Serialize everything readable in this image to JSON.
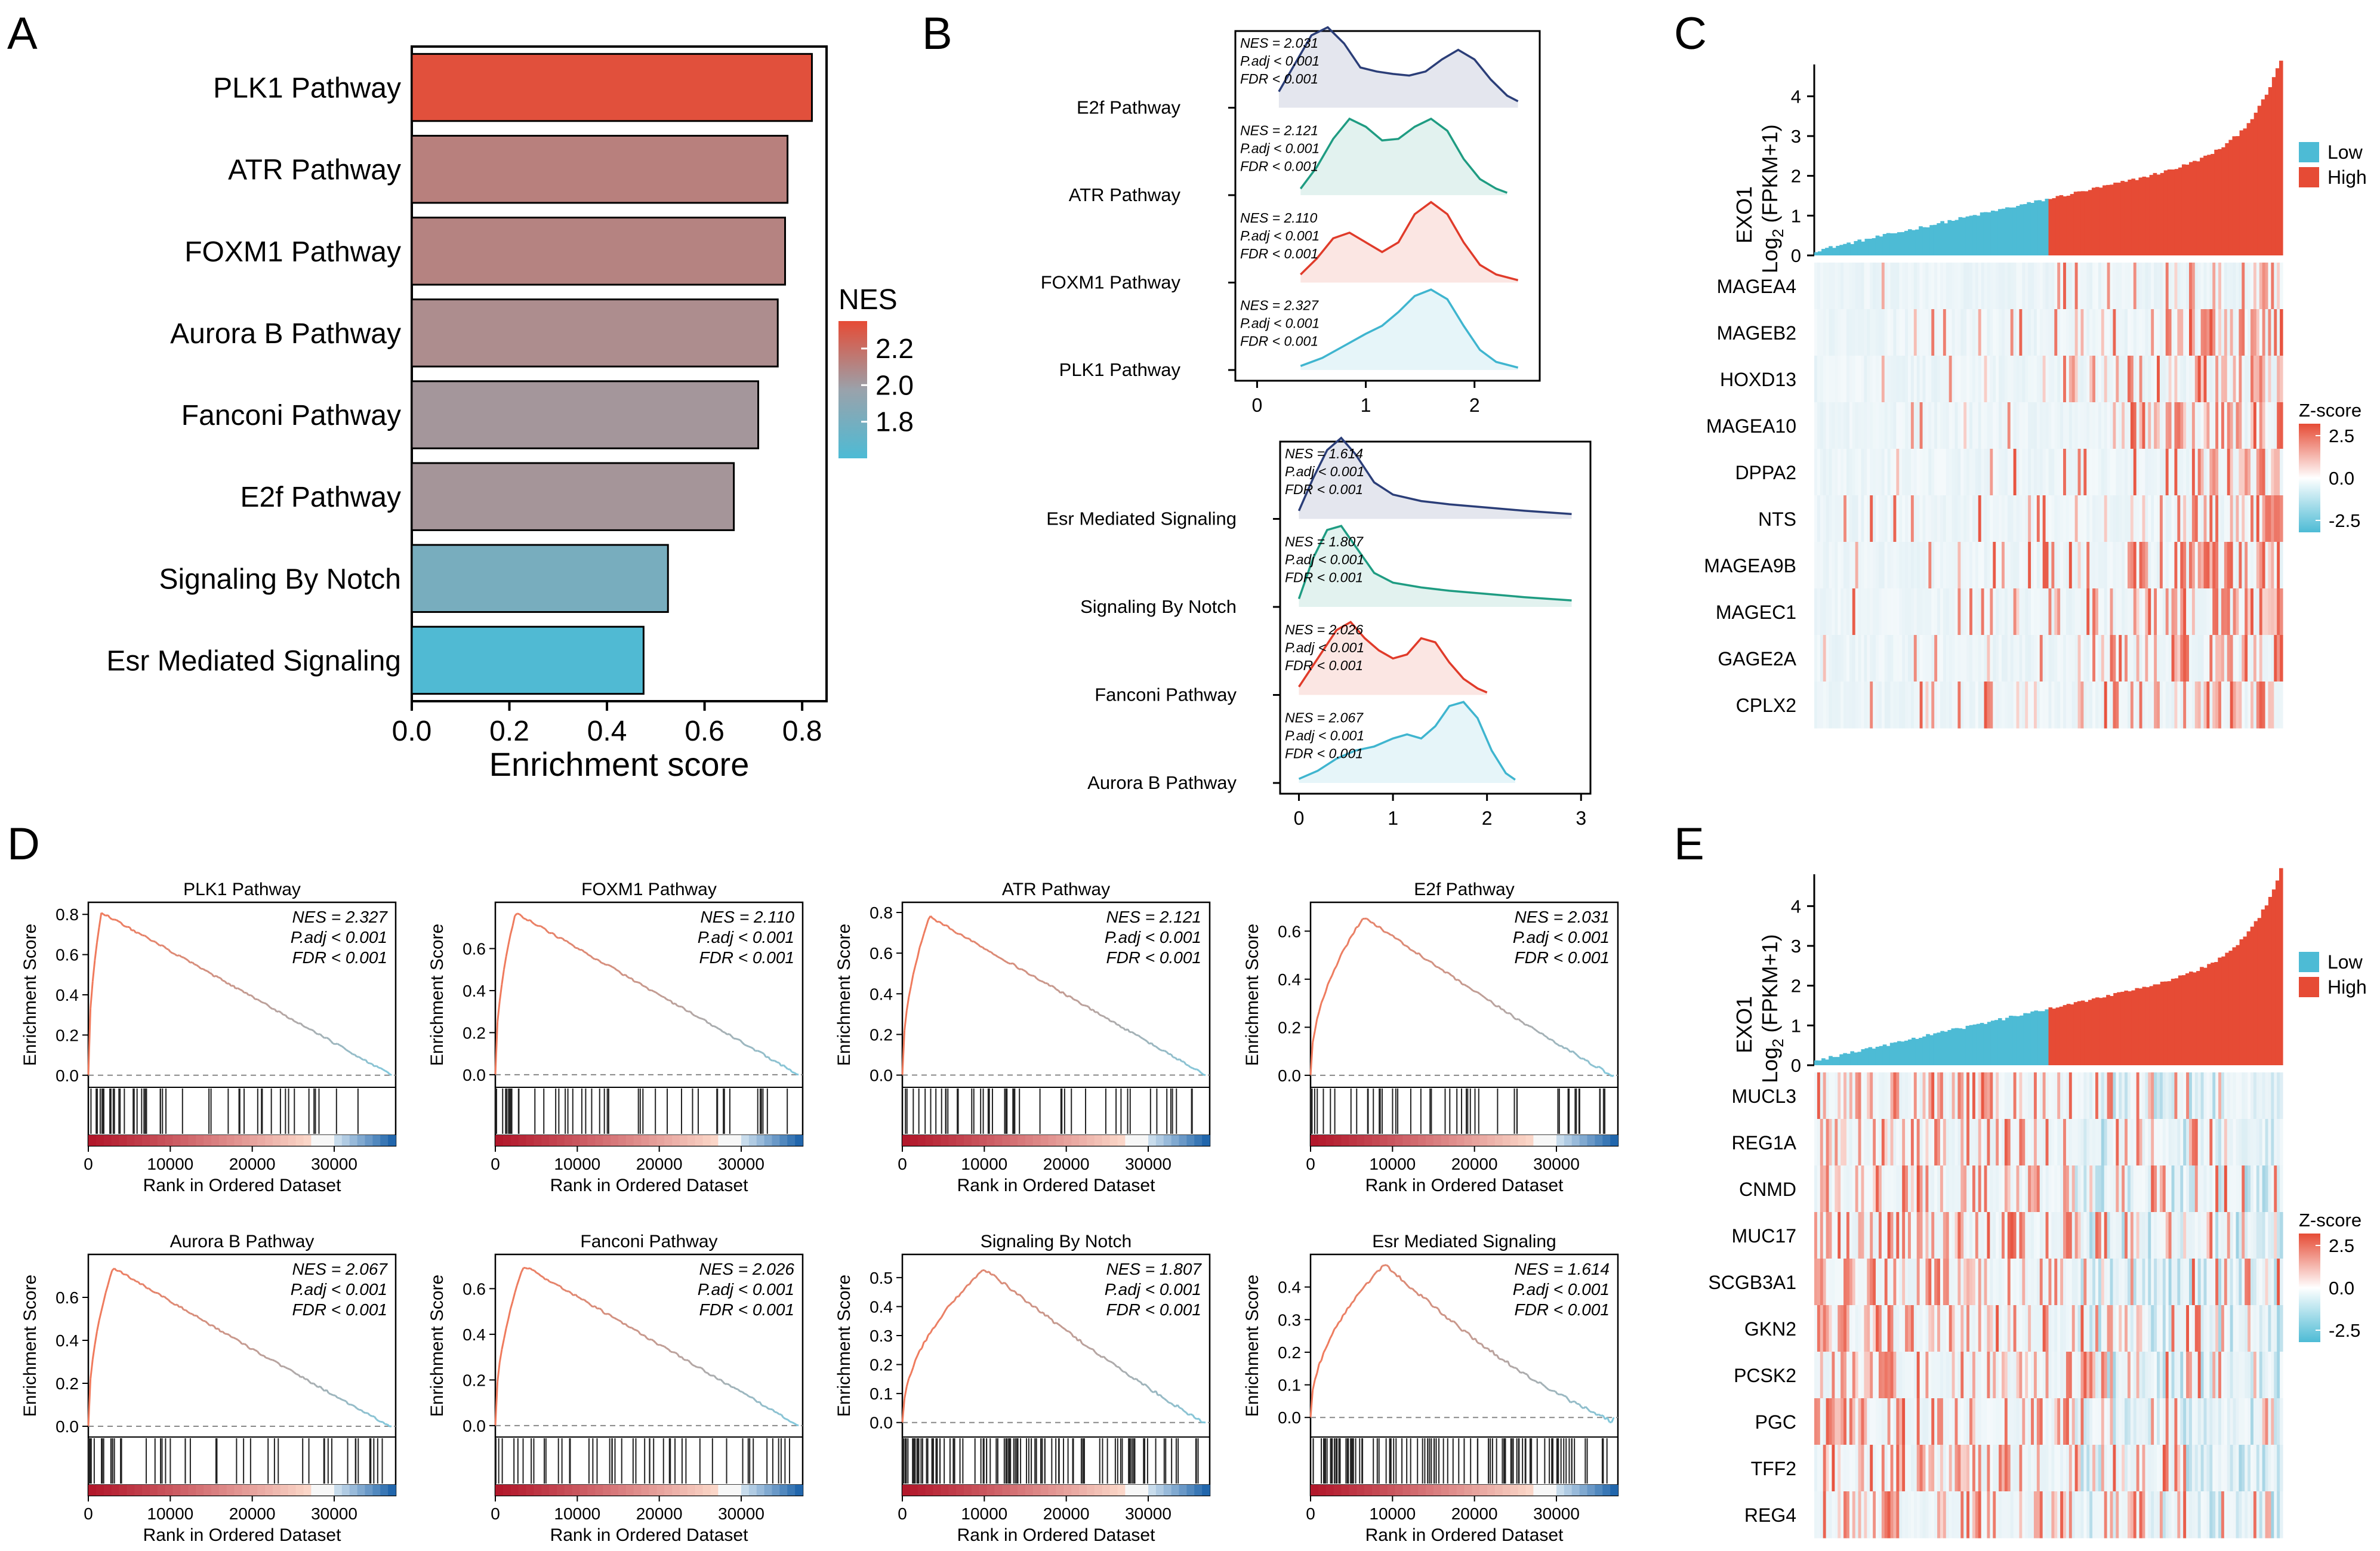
{
  "panels": {
    "A": "A",
    "B": "B",
    "C": "C",
    "D": "D",
    "E": "E"
  },
  "colors": {
    "high": "#e64b35",
    "low": "#4dbbd5",
    "mid": "#9aa2ab",
    "ridge_e2f": "#2b3e78",
    "ridge_atr": "#1f9c82",
    "ridge_foxm1": "#e03b2a",
    "ridge_plk1": "#3fb5cf"
  },
  "chart_data": [
    {
      "id": "A",
      "type": "bar",
      "orientation": "horizontal",
      "categories": [
        "PLK1 Pathway",
        "ATR Pathway",
        "FOXM1 Pathway",
        "Aurora B Pathway",
        "Fanconi Pathway",
        "E2f Pathway",
        "Signaling By Notch",
        "Esr Mediated Signaling"
      ],
      "values": [
        0.82,
        0.77,
        0.765,
        0.75,
        0.71,
        0.66,
        0.525,
        0.475
      ],
      "nes": [
        2.327,
        2.121,
        2.11,
        2.067,
        2.026,
        2.031,
        1.807,
        1.614
      ],
      "xlabel": "Enrichment score",
      "xticks": [
        "0.0",
        "0.2",
        "0.4",
        "0.6",
        "0.8"
      ],
      "xlim": [
        0,
        0.85
      ],
      "legend": {
        "title": "NES",
        "ticks": [
          "2.2",
          "2.0",
          "1.8"
        ],
        "range": [
          1.6,
          2.35
        ],
        "tick_values": [
          2.2,
          2.0,
          1.8
        ],
        "placement": "right"
      }
    },
    {
      "id": "B",
      "type": "ridgeline",
      "groups": [
        {
          "xticks": [
            "0",
            "1",
            "2"
          ],
          "xlim": [
            -0.2,
            2.6
          ],
          "rows": [
            {
              "label": "E2f Pathway",
              "nes": "NES = 2.031",
              "padj": "P.adj < 0.001",
              "fdr": "FDR < 0.001",
              "color": "#2b3e78",
              "x": [
                0.2,
                0.35,
                0.5,
                0.65,
                0.8,
                0.95,
                1.1,
                1.25,
                1.4,
                1.55,
                1.7,
                1.85,
                2.0,
                2.15,
                2.3,
                2.4
              ],
              "y": [
                0.2,
                0.55,
                0.9,
                1.0,
                0.8,
                0.5,
                0.45,
                0.42,
                0.4,
                0.45,
                0.6,
                0.72,
                0.6,
                0.35,
                0.15,
                0.08
              ]
            },
            {
              "label": "ATR Pathway",
              "nes": "NES = 2.121",
              "padj": "P.adj < 0.001",
              "fdr": "FDR < 0.001",
              "color": "#1f9c82",
              "x": [
                0.4,
                0.55,
                0.7,
                0.85,
                1.0,
                1.15,
                1.3,
                1.45,
                1.6,
                1.75,
                1.9,
                2.05,
                2.2,
                2.3
              ],
              "y": [
                0.08,
                0.35,
                0.7,
                0.95,
                0.85,
                0.68,
                0.7,
                0.85,
                0.95,
                0.8,
                0.45,
                0.2,
                0.08,
                0.03
              ]
            },
            {
              "label": "FOXM1 Pathway",
              "nes": "NES = 2.110",
              "padj": "P.adj < 0.001",
              "fdr": "FDR < 0.001",
              "color": "#e03b2a",
              "x": [
                0.4,
                0.55,
                0.7,
                0.85,
                1.0,
                1.15,
                1.3,
                1.45,
                1.6,
                1.75,
                1.9,
                2.05,
                2.2,
                2.4
              ],
              "y": [
                0.1,
                0.3,
                0.55,
                0.62,
                0.5,
                0.38,
                0.5,
                0.85,
                1.0,
                0.85,
                0.5,
                0.22,
                0.1,
                0.03
              ]
            },
            {
              "label": "PLK1 Pathway",
              "nes": "NES = 2.327",
              "padj": "P.adj < 0.001",
              "fdr": "FDR < 0.001",
              "color": "#3fb5cf",
              "x": [
                0.4,
                0.6,
                0.8,
                1.0,
                1.15,
                1.3,
                1.45,
                1.6,
                1.75,
                1.9,
                2.05,
                2.2,
                2.4
              ],
              "y": [
                0.05,
                0.15,
                0.3,
                0.45,
                0.55,
                0.72,
                0.92,
                1.0,
                0.88,
                0.55,
                0.25,
                0.1,
                0.03
              ]
            }
          ]
        },
        {
          "xticks": [
            "0",
            "1",
            "2",
            "3"
          ],
          "xlim": [
            -0.2,
            3.1
          ],
          "rows": [
            {
              "label": "Esr Mediated Signaling",
              "nes": "NES = 1.614",
              "padj": "P.adj < 0.001",
              "fdr": "FDR < 0.001",
              "color": "#2b3e78",
              "x": [
                0.0,
                0.15,
                0.3,
                0.45,
                0.6,
                0.8,
                1.0,
                1.3,
                1.6,
                2.0,
                2.4,
                2.9
              ],
              "y": [
                0.1,
                0.5,
                0.85,
                1.0,
                0.8,
                0.45,
                0.3,
                0.22,
                0.18,
                0.14,
                0.1,
                0.06
              ]
            },
            {
              "label": "Signaling By Notch",
              "nes": "NES = 1.807",
              "padj": "P.adj < 0.001",
              "fdr": "FDR < 0.001",
              "color": "#1f9c82",
              "x": [
                0.0,
                0.15,
                0.3,
                0.45,
                0.6,
                0.8,
                1.0,
                1.3,
                1.6,
                2.0,
                2.4,
                2.9
              ],
              "y": [
                0.1,
                0.6,
                0.95,
                1.0,
                0.75,
                0.42,
                0.3,
                0.24,
                0.2,
                0.16,
                0.12,
                0.08
              ]
            },
            {
              "label": "Fanconi Pathway",
              "nes": "NES = 2.026",
              "padj": "P.adj < 0.001",
              "fdr": "FDR < 0.001",
              "color": "#e03b2a",
              "x": [
                0.0,
                0.2,
                0.4,
                0.55,
                0.7,
                0.85,
                1.0,
                1.15,
                1.3,
                1.45,
                1.6,
                1.75,
                1.9,
                2.0
              ],
              "y": [
                0.1,
                0.45,
                0.8,
                0.9,
                0.7,
                0.55,
                0.45,
                0.5,
                0.7,
                0.65,
                0.4,
                0.2,
                0.08,
                0.03
              ]
            },
            {
              "label": "Aurora B Pathway",
              "nes": "NES = 2.067",
              "padj": "P.adj < 0.001",
              "fdr": "FDR < 0.001",
              "color": "#3fb5cf",
              "x": [
                0.0,
                0.2,
                0.4,
                0.6,
                0.8,
                1.0,
                1.15,
                1.3,
                1.45,
                1.6,
                1.75,
                1.9,
                2.05,
                2.2,
                2.3
              ],
              "y": [
                0.05,
                0.15,
                0.3,
                0.4,
                0.45,
                0.55,
                0.6,
                0.55,
                0.7,
                0.95,
                1.0,
                0.8,
                0.4,
                0.12,
                0.04
              ]
            }
          ]
        }
      ]
    },
    {
      "id": "C",
      "type": "heatmap",
      "sample_ylabel_1": "EXO1",
      "sample_ylabel_2": "Log",
      "sample_ylabel_sub": "2",
      "sample_ylabel_3": "(FPKM+1)",
      "yticks": [
        "0",
        "1",
        "2",
        "3",
        "4"
      ],
      "ylim": [
        0,
        4.8
      ],
      "legend": {
        "low": "Low",
        "high": "High"
      },
      "zscore": {
        "title": "Z-score",
        "ticks": [
          "2.5",
          "0.0",
          "-2.5"
        ]
      },
      "genes": [
        "MAGEA4",
        "MAGEB2",
        "HOXD13",
        "MAGEA10",
        "DPPA2",
        "NTS",
        "MAGEA9B",
        "MAGEC1",
        "GAGE2A",
        "CPLX2"
      ],
      "gene_bias": [
        1,
        1,
        1,
        1,
        1,
        1,
        1,
        1,
        1,
        1
      ]
    },
    {
      "id": "E",
      "type": "heatmap",
      "sample_ylabel_1": "EXO1",
      "sample_ylabel_2": "Log",
      "sample_ylabel_sub": "2",
      "sample_ylabel_3": "(FPKM+1)",
      "yticks": [
        "0",
        "1",
        "2",
        "3",
        "4"
      ],
      "ylim": [
        0,
        4.8
      ],
      "legend": {
        "low": "Low",
        "high": "High"
      },
      "zscore": {
        "title": "Z-score",
        "ticks": [
          "2.5",
          "0.0",
          "-2.5"
        ]
      },
      "genes": [
        "MUCL3",
        "REG1A",
        "CNMD",
        "MUC17",
        "SCGB3A1",
        "GKN2",
        "PCSK2",
        "PGC",
        "TFF2",
        "REG4"
      ],
      "gene_bias": [
        -1,
        -1,
        -1,
        -1,
        -1,
        -1,
        -1,
        -1,
        -1,
        -1
      ]
    },
    {
      "id": "D",
      "type": "line",
      "xlabel": "Rank in Ordered Dataset",
      "ylabel": "Enrichment Score",
      "xticks": [
        "0",
        "10000",
        "20000",
        "30000"
      ],
      "xtick_values": [
        0,
        10000,
        20000,
        30000
      ],
      "xlim": [
        0,
        37500
      ],
      "plots": [
        {
          "title": "PLK1 Pathway",
          "nes": "NES = 2.327",
          "padj": "P.adj < 0.001",
          "fdr": "FDR < 0.001",
          "ylim": [
            -0.06,
            0.86
          ],
          "yticks": [
            "0.0",
            "0.2",
            "0.4",
            "0.6",
            "0.8"
          ],
          "ytick_values": [
            0,
            0.2,
            0.4,
            0.6,
            0.8
          ],
          "peak": 0.81,
          "peak_x": 1600,
          "end_dip": 0.0
        },
        {
          "title": "FOXM1 Pathway",
          "nes": "NES = 2.110",
          "padj": "P.adj < 0.001",
          "fdr": "FDR < 0.001",
          "ylim": [
            -0.06,
            0.82
          ],
          "yticks": [
            "0.0",
            "0.2",
            "0.4",
            "0.6"
          ],
          "ytick_values": [
            0,
            0.2,
            0.4,
            0.6
          ],
          "peak": 0.77,
          "peak_x": 2500,
          "end_dip": 0.0
        },
        {
          "title": "ATR Pathway",
          "nes": "NES = 2.121",
          "padj": "P.adj < 0.001",
          "fdr": "FDR < 0.001",
          "ylim": [
            -0.06,
            0.85
          ],
          "yticks": [
            "0.0",
            "0.2",
            "0.4",
            "0.6",
            "0.8"
          ],
          "ytick_values": [
            0,
            0.2,
            0.4,
            0.6,
            0.8
          ],
          "peak": 0.78,
          "peak_x": 3300,
          "end_dip": 0.0
        },
        {
          "title": "E2f Pathway",
          "nes": "NES = 2.031",
          "padj": "P.adj < 0.001",
          "fdr": "FDR < 0.001",
          "ylim": [
            -0.05,
            0.72
          ],
          "yticks": [
            "0.0",
            "0.2",
            "0.4",
            "0.6"
          ],
          "ytick_values": [
            0,
            0.2,
            0.4,
            0.6
          ],
          "peak": 0.66,
          "peak_x": 6500,
          "end_dip": -0.02
        },
        {
          "title": "Aurora B Pathway",
          "nes": "NES = 2.067",
          "padj": "P.adj < 0.001",
          "fdr": "FDR < 0.001",
          "ylim": [
            -0.05,
            0.8
          ],
          "yticks": [
            "0.0",
            "0.2",
            "0.4",
            "0.6"
          ],
          "ytick_values": [
            0,
            0.2,
            0.4,
            0.6
          ],
          "peak": 0.74,
          "peak_x": 3000,
          "end_dip": -0.01
        },
        {
          "title": "Fanconi Pathway",
          "nes": "NES = 2.026",
          "padj": "P.adj < 0.001",
          "fdr": "FDR < 0.001",
          "ylim": [
            -0.05,
            0.75
          ],
          "yticks": [
            "0.0",
            "0.2",
            "0.4",
            "0.6"
          ],
          "ytick_values": [
            0,
            0.2,
            0.4,
            0.6
          ],
          "peak": 0.7,
          "peak_x": 3500,
          "end_dip": 0.0
        },
        {
          "title": "Signaling By Notch",
          "nes": "NES = 1.807",
          "padj": "P.adj < 0.001",
          "fdr": "FDR < 0.001",
          "ylim": [
            -0.05,
            0.58
          ],
          "yticks": [
            "0.0",
            "0.1",
            "0.2",
            "0.3",
            "0.4",
            "0.5"
          ],
          "ytick_values": [
            0,
            0.1,
            0.2,
            0.3,
            0.4,
            0.5
          ],
          "peak": 0.53,
          "peak_x": 10000,
          "end_dip": -0.02
        },
        {
          "title": "Esr Mediated Signaling",
          "nes": "NES = 1.614",
          "padj": "P.adj < 0.001",
          "fdr": "FDR < 0.001",
          "ylim": [
            -0.06,
            0.5
          ],
          "yticks": [
            "0.0",
            "0.1",
            "0.2",
            "0.3",
            "0.4"
          ],
          "ytick_values": [
            0,
            0.1,
            0.2,
            0.3,
            0.4
          ],
          "peak": 0.47,
          "peak_x": 9000,
          "end_dip": -0.05
        }
      ]
    }
  ]
}
